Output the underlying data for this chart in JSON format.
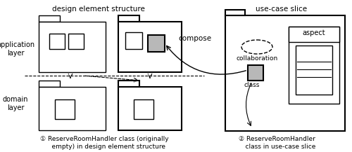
{
  "title_left": "design element structure",
  "title_right": "use-case slice",
  "label_app": "application\nlayer",
  "label_domain": "domain\nlayer",
  "compose_text": "compose",
  "collaboration_text": "collaboration",
  "class_text": "class",
  "aspect_text": "aspect",
  "annotation1": "① ReserveRoomHandler class (originally\n    empty) in design element structure",
  "annotation2": "② ReserveRoomHandler\n    class in use-case slice",
  "bg_color": "#ffffff",
  "gray_fill": "#b8b8b8"
}
